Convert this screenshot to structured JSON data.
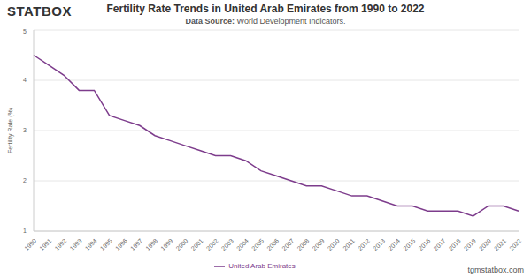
{
  "chart_data": {
    "type": "line",
    "title": "Fertility Rate Trends in United Arab Emirates from 1990 to 2022",
    "subtitle": "Data Source: World Development Indicators.",
    "logo": "STATBOX",
    "watermark": "tgmstatbox.com",
    "y_label": "Fertility Rate (%)",
    "categories": [
      "1990",
      "1991",
      "1992",
      "1993",
      "1994",
      "1995",
      "1996",
      "1997",
      "1998",
      "1999",
      "2000",
      "2001",
      "2002",
      "2003",
      "2004",
      "2005",
      "2006",
      "2007",
      "2008",
      "2009",
      "2010",
      "2011",
      "2012",
      "2013",
      "2014",
      "2015",
      "2016",
      "2017",
      "2018",
      "2019",
      "2020",
      "2021",
      "2022"
    ],
    "series": [
      {
        "name": "United Arab Emirates",
        "color": "#7d3c8c",
        "values": [
          4.5,
          4.3,
          4.1,
          3.8,
          3.8,
          3.3,
          3.2,
          3.1,
          2.9,
          2.8,
          2.7,
          2.6,
          2.5,
          2.5,
          2.4,
          2.2,
          2.1,
          2.0,
          1.9,
          1.9,
          1.8,
          1.7,
          1.7,
          1.6,
          1.5,
          1.5,
          1.4,
          1.4,
          1.4,
          1.3,
          1.5,
          1.5,
          1.4
        ]
      }
    ],
    "ylim": [
      1,
      5
    ],
    "yticks": [
      1,
      2,
      3,
      4,
      5
    ],
    "grid": true,
    "legend": "bottom"
  }
}
